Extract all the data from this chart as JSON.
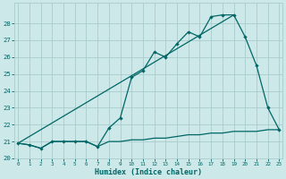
{
  "title": "",
  "xlabel": "Humidex (Indice chaleur)",
  "bg_color": "#cce8e8",
  "grid_color": "#aacccc",
  "line_color": "#006666",
  "x_values": [
    0,
    1,
    2,
    3,
    4,
    5,
    6,
    7,
    8,
    9,
    10,
    11,
    12,
    13,
    14,
    15,
    16,
    17,
    18,
    19,
    20,
    21,
    22,
    23
  ],
  "series_main": [
    20.9,
    20.8,
    20.6,
    21.0,
    21.0,
    21.0,
    21.0,
    20.7,
    21.8,
    22.4,
    24.8,
    25.2,
    26.3,
    26.0,
    26.8,
    27.5,
    27.2,
    28.4,
    28.5,
    28.5,
    27.2,
    25.5,
    23.0,
    21.7
  ],
  "series_flat": [
    20.9,
    20.8,
    20.6,
    21.0,
    21.0,
    21.0,
    21.0,
    20.7,
    21.0,
    21.0,
    21.1,
    21.1,
    21.2,
    21.2,
    21.3,
    21.4,
    21.4,
    21.5,
    21.5,
    21.6,
    21.6,
    21.6,
    21.7,
    21.7
  ],
  "trend_x": [
    0,
    19
  ],
  "trend_y": [
    20.9,
    28.5
  ],
  "ylim": [
    20.0,
    29.2
  ],
  "xlim": [
    -0.3,
    23.3
  ],
  "yticks": [
    20,
    21,
    22,
    23,
    24,
    25,
    26,
    27,
    28
  ],
  "xticks": [
    0,
    1,
    2,
    3,
    4,
    5,
    6,
    7,
    8,
    9,
    10,
    11,
    12,
    13,
    14,
    15,
    16,
    17,
    18,
    19,
    20,
    21,
    22,
    23
  ]
}
